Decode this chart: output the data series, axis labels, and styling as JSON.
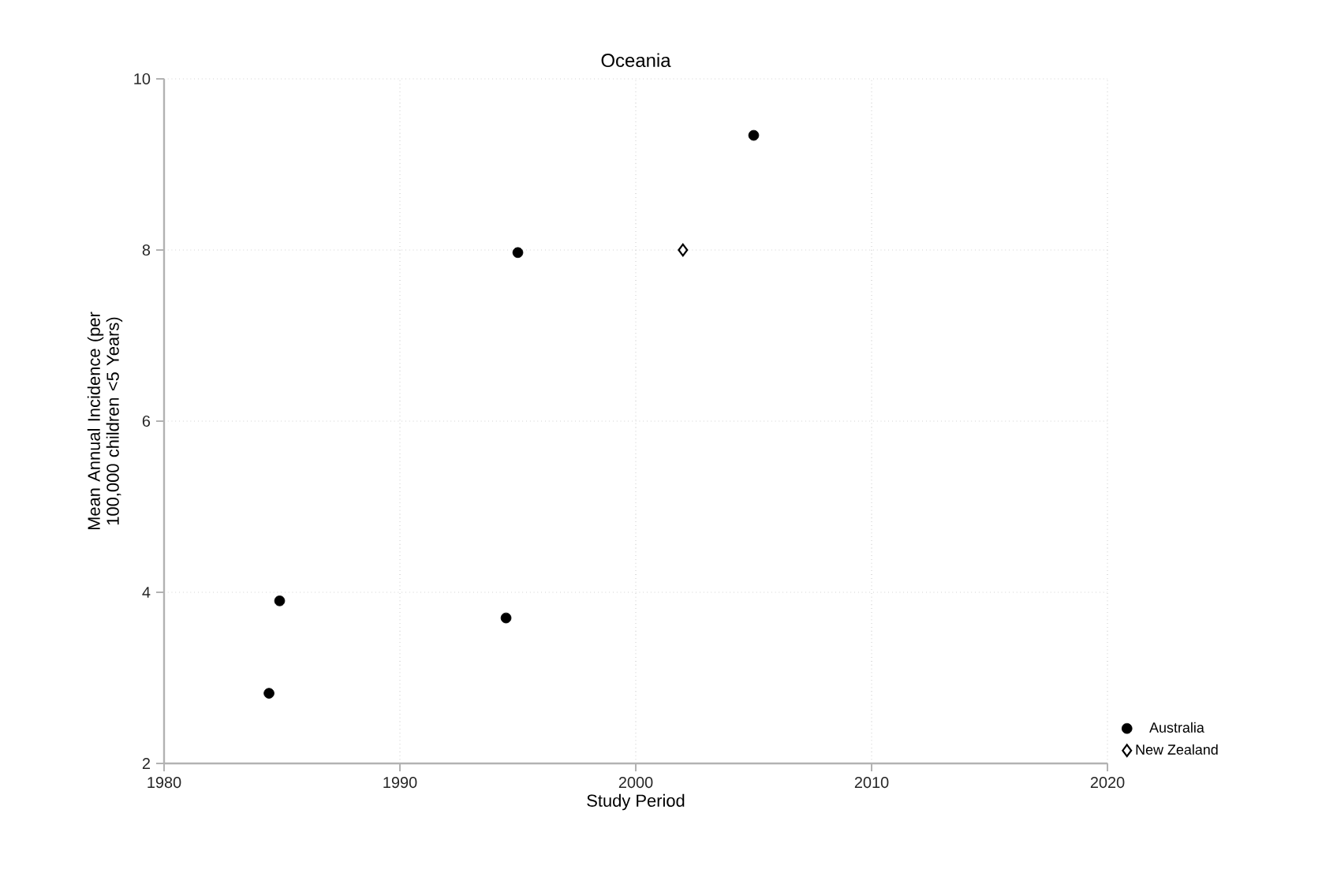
{
  "chart_data": {
    "type": "scatter",
    "title": "Oceania",
    "xlabel": "Study Period",
    "ylabel": "Mean Annual Incidence (per 100,000 children <5 Years)",
    "xlim": [
      1980,
      2020
    ],
    "xticks": [
      1980,
      1990,
      2000,
      2010,
      2020
    ],
    "ylim": [
      2,
      10
    ],
    "yticks": [
      2,
      4,
      6,
      8,
      10
    ],
    "grid": true,
    "legend": "bottom right",
    "series": [
      {
        "name": "Australia",
        "color": "#000000",
        "marker": "circle",
        "x": [
          1984.45,
          1984.9,
          1994.5,
          1995.0,
          2005.0
        ],
        "values": [
          2.82,
          3.9,
          3.7,
          7.97,
          9.34
        ]
      },
      {
        "name": "New Zealand",
        "color": "#000000",
        "marker": "diamond",
        "x": [
          2002.0
        ],
        "values": [
          8.0
        ]
      }
    ]
  }
}
